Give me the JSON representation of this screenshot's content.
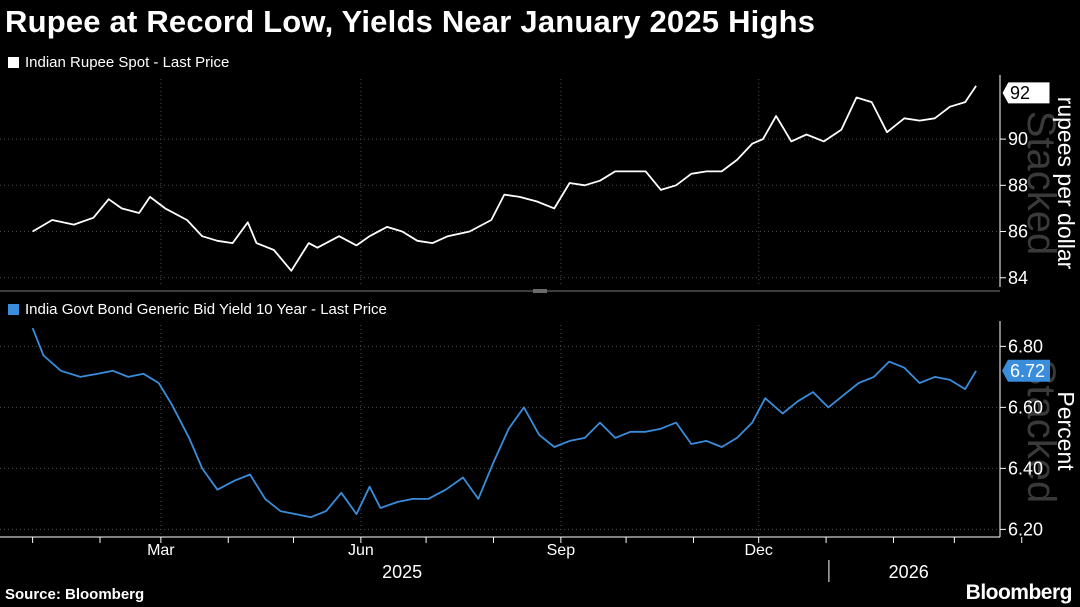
{
  "title": "Rupee at Record Low, Yields Near January 2025 Highs",
  "source": "Source: Bloomberg",
  "brand": "Bloomberg",
  "watermark": "Stacked",
  "colors": {
    "rupee": "#ffffff",
    "yield": "#3a8ddb",
    "grid": "#4a4a4a",
    "background": "#000000"
  },
  "chart_data": [
    {
      "type": "line",
      "legend": "Indian Rupee Spot - Last Price",
      "ylabel": "rupees per dollar",
      "ylim": [
        83.6,
        92.6
      ],
      "yticks": [
        "84",
        "86",
        "88",
        "90"
      ],
      "yticks_values": [
        84,
        86,
        88,
        90
      ],
      "last_value_label": "92",
      "last_value": 92,
      "x_axis": {
        "months": [
          "Mar",
          "Jun",
          "Sep",
          "Dec"
        ],
        "years": [
          "2025",
          "2026"
        ]
      },
      "series": [
        {
          "x": [
            "2025-01-01",
            "2025-01-10",
            "2025-01-20",
            "2025-01-29",
            "2025-02-05",
            "2025-02-11",
            "2025-02-19",
            "2025-02-24",
            "2025-03-03",
            "2025-03-13",
            "2025-03-20",
            "2025-03-27",
            "2025-04-03",
            "2025-04-10",
            "2025-04-14",
            "2025-04-22",
            "2025-04-30",
            "2025-05-08",
            "2025-05-12",
            "2025-05-22",
            "2025-05-30",
            "2025-06-05",
            "2025-06-13",
            "2025-06-20",
            "2025-06-27",
            "2025-07-04",
            "2025-07-11",
            "2025-07-21",
            "2025-07-31",
            "2025-08-06",
            "2025-08-13",
            "2025-08-21",
            "2025-08-29",
            "2025-09-05",
            "2025-09-12",
            "2025-09-19",
            "2025-09-26",
            "2025-10-03",
            "2025-10-10",
            "2025-10-17",
            "2025-10-24",
            "2025-10-31",
            "2025-11-07",
            "2025-11-14",
            "2025-11-21",
            "2025-11-28",
            "2025-12-03",
            "2025-12-09",
            "2025-12-16",
            "2025-12-23",
            "2025-12-31",
            "2026-01-08",
            "2026-01-15",
            "2026-01-22",
            "2026-01-29",
            "2026-02-06",
            "2026-02-13",
            "2026-02-20",
            "2026-02-27",
            "2026-03-06",
            "2026-03-11"
          ],
          "y": [
            86.0,
            86.5,
            86.3,
            86.6,
            87.4,
            87.0,
            86.8,
            87.5,
            87.0,
            86.5,
            85.8,
            85.6,
            85.5,
            86.4,
            85.5,
            85.2,
            84.3,
            85.5,
            85.3,
            85.8,
            85.4,
            85.8,
            86.2,
            86.0,
            85.6,
            85.5,
            85.8,
            86.0,
            86.5,
            87.6,
            87.5,
            87.3,
            87.0,
            88.1,
            88.0,
            88.2,
            88.6,
            88.6,
            88.6,
            87.8,
            88.0,
            88.5,
            88.6,
            88.6,
            89.1,
            89.8,
            90.0,
            91.0,
            89.9,
            90.2,
            89.9,
            90.4,
            91.8,
            91.6,
            90.3,
            90.9,
            90.8,
            90.9,
            91.4,
            91.6,
            92.3
          ]
        }
      ]
    },
    {
      "type": "line",
      "legend": "India Govt Bond Generic Bid Yield 10 Year - Last Price",
      "ylabel": "Percent",
      "ylim": [
        6.175,
        6.87
      ],
      "yticks": [
        "6.20",
        "6.40",
        "6.60",
        "6.80"
      ],
      "yticks_values": [
        6.2,
        6.4,
        6.6,
        6.8
      ],
      "last_value_label": "6.72",
      "last_value": 6.72,
      "series": [
        {
          "x": [
            "2025-01-01",
            "2025-01-06",
            "2025-01-14",
            "2025-01-23",
            "2025-01-31",
            "2025-02-07",
            "2025-02-14",
            "2025-02-21",
            "2025-02-28",
            "2025-03-06",
            "2025-03-14",
            "2025-03-20",
            "2025-03-27",
            "2025-04-04",
            "2025-04-11",
            "2025-04-18",
            "2025-04-25",
            "2025-05-02",
            "2025-05-09",
            "2025-05-16",
            "2025-05-23",
            "2025-05-30",
            "2025-06-05",
            "2025-06-10",
            "2025-06-18",
            "2025-06-25",
            "2025-07-02",
            "2025-07-10",
            "2025-07-18",
            "2025-07-25",
            "2025-08-01",
            "2025-08-08",
            "2025-08-15",
            "2025-08-22",
            "2025-08-29",
            "2025-09-05",
            "2025-09-12",
            "2025-09-19",
            "2025-09-26",
            "2025-10-03",
            "2025-10-10",
            "2025-10-17",
            "2025-10-24",
            "2025-10-31",
            "2025-11-07",
            "2025-11-14",
            "2025-11-21",
            "2025-11-28",
            "2025-12-04",
            "2025-12-12",
            "2025-12-19",
            "2025-12-26",
            "2026-01-02",
            "2026-01-09",
            "2026-01-16",
            "2026-01-23",
            "2026-01-30",
            "2026-02-06",
            "2026-02-13",
            "2026-02-20",
            "2026-02-27",
            "2026-03-06",
            "2026-03-11"
          ],
          "y": [
            6.86,
            6.77,
            6.72,
            6.7,
            6.71,
            6.72,
            6.7,
            6.71,
            6.68,
            6.61,
            6.5,
            6.4,
            6.33,
            6.36,
            6.38,
            6.3,
            6.26,
            6.25,
            6.24,
            6.26,
            6.32,
            6.25,
            6.34,
            6.27,
            6.29,
            6.3,
            6.3,
            6.33,
            6.37,
            6.3,
            6.42,
            6.53,
            6.6,
            6.51,
            6.47,
            6.49,
            6.5,
            6.55,
            6.5,
            6.52,
            6.52,
            6.53,
            6.55,
            6.48,
            6.49,
            6.47,
            6.5,
            6.55,
            6.63,
            6.58,
            6.62,
            6.65,
            6.6,
            6.64,
            6.68,
            6.7,
            6.75,
            6.73,
            6.68,
            6.7,
            6.69,
            6.66,
            6.72
          ]
        }
      ]
    }
  ]
}
